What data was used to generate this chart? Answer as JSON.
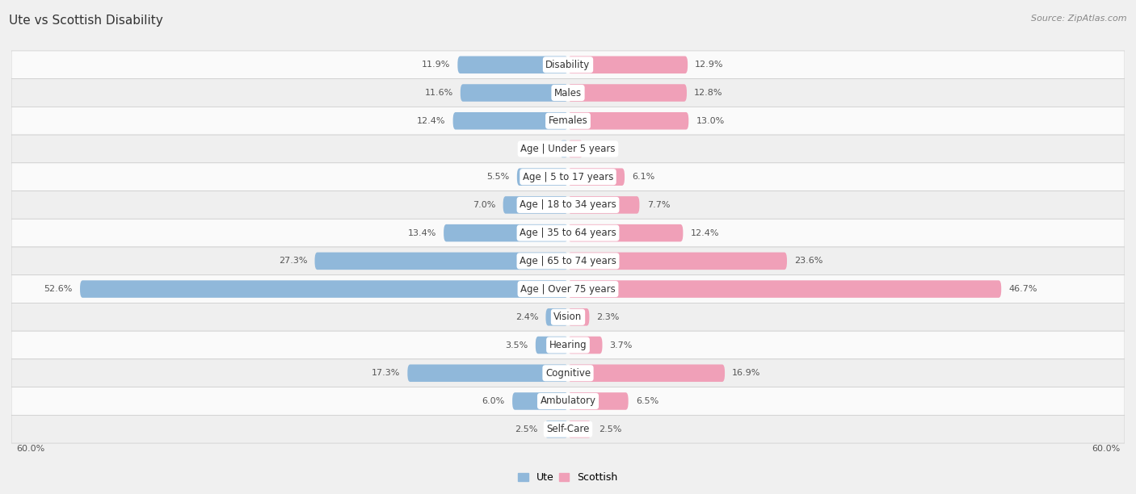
{
  "title": "Ute vs Scottish Disability",
  "source": "Source: ZipAtlas.com",
  "categories": [
    "Disability",
    "Males",
    "Females",
    "Age | Under 5 years",
    "Age | 5 to 17 years",
    "Age | 18 to 34 years",
    "Age | 35 to 64 years",
    "Age | 65 to 74 years",
    "Age | Over 75 years",
    "Vision",
    "Hearing",
    "Cognitive",
    "Ambulatory",
    "Self-Care"
  ],
  "ute_values": [
    11.9,
    11.6,
    12.4,
    0.86,
    5.5,
    7.0,
    13.4,
    27.3,
    52.6,
    2.4,
    3.5,
    17.3,
    6.0,
    2.5
  ],
  "scottish_values": [
    12.9,
    12.8,
    13.0,
    1.6,
    6.1,
    7.7,
    12.4,
    23.6,
    46.7,
    2.3,
    3.7,
    16.9,
    6.5,
    2.5
  ],
  "ute_color": "#90b8da",
  "scottish_color": "#f0a0b8",
  "axis_max": 60.0,
  "bar_height": 0.62,
  "background_color": "#f0f0f0",
  "row_light": "#fafafa",
  "row_dark": "#efefef",
  "title_fontsize": 11,
  "label_fontsize": 8.5,
  "value_fontsize": 8,
  "legend_fontsize": 9,
  "source_fontsize": 8
}
